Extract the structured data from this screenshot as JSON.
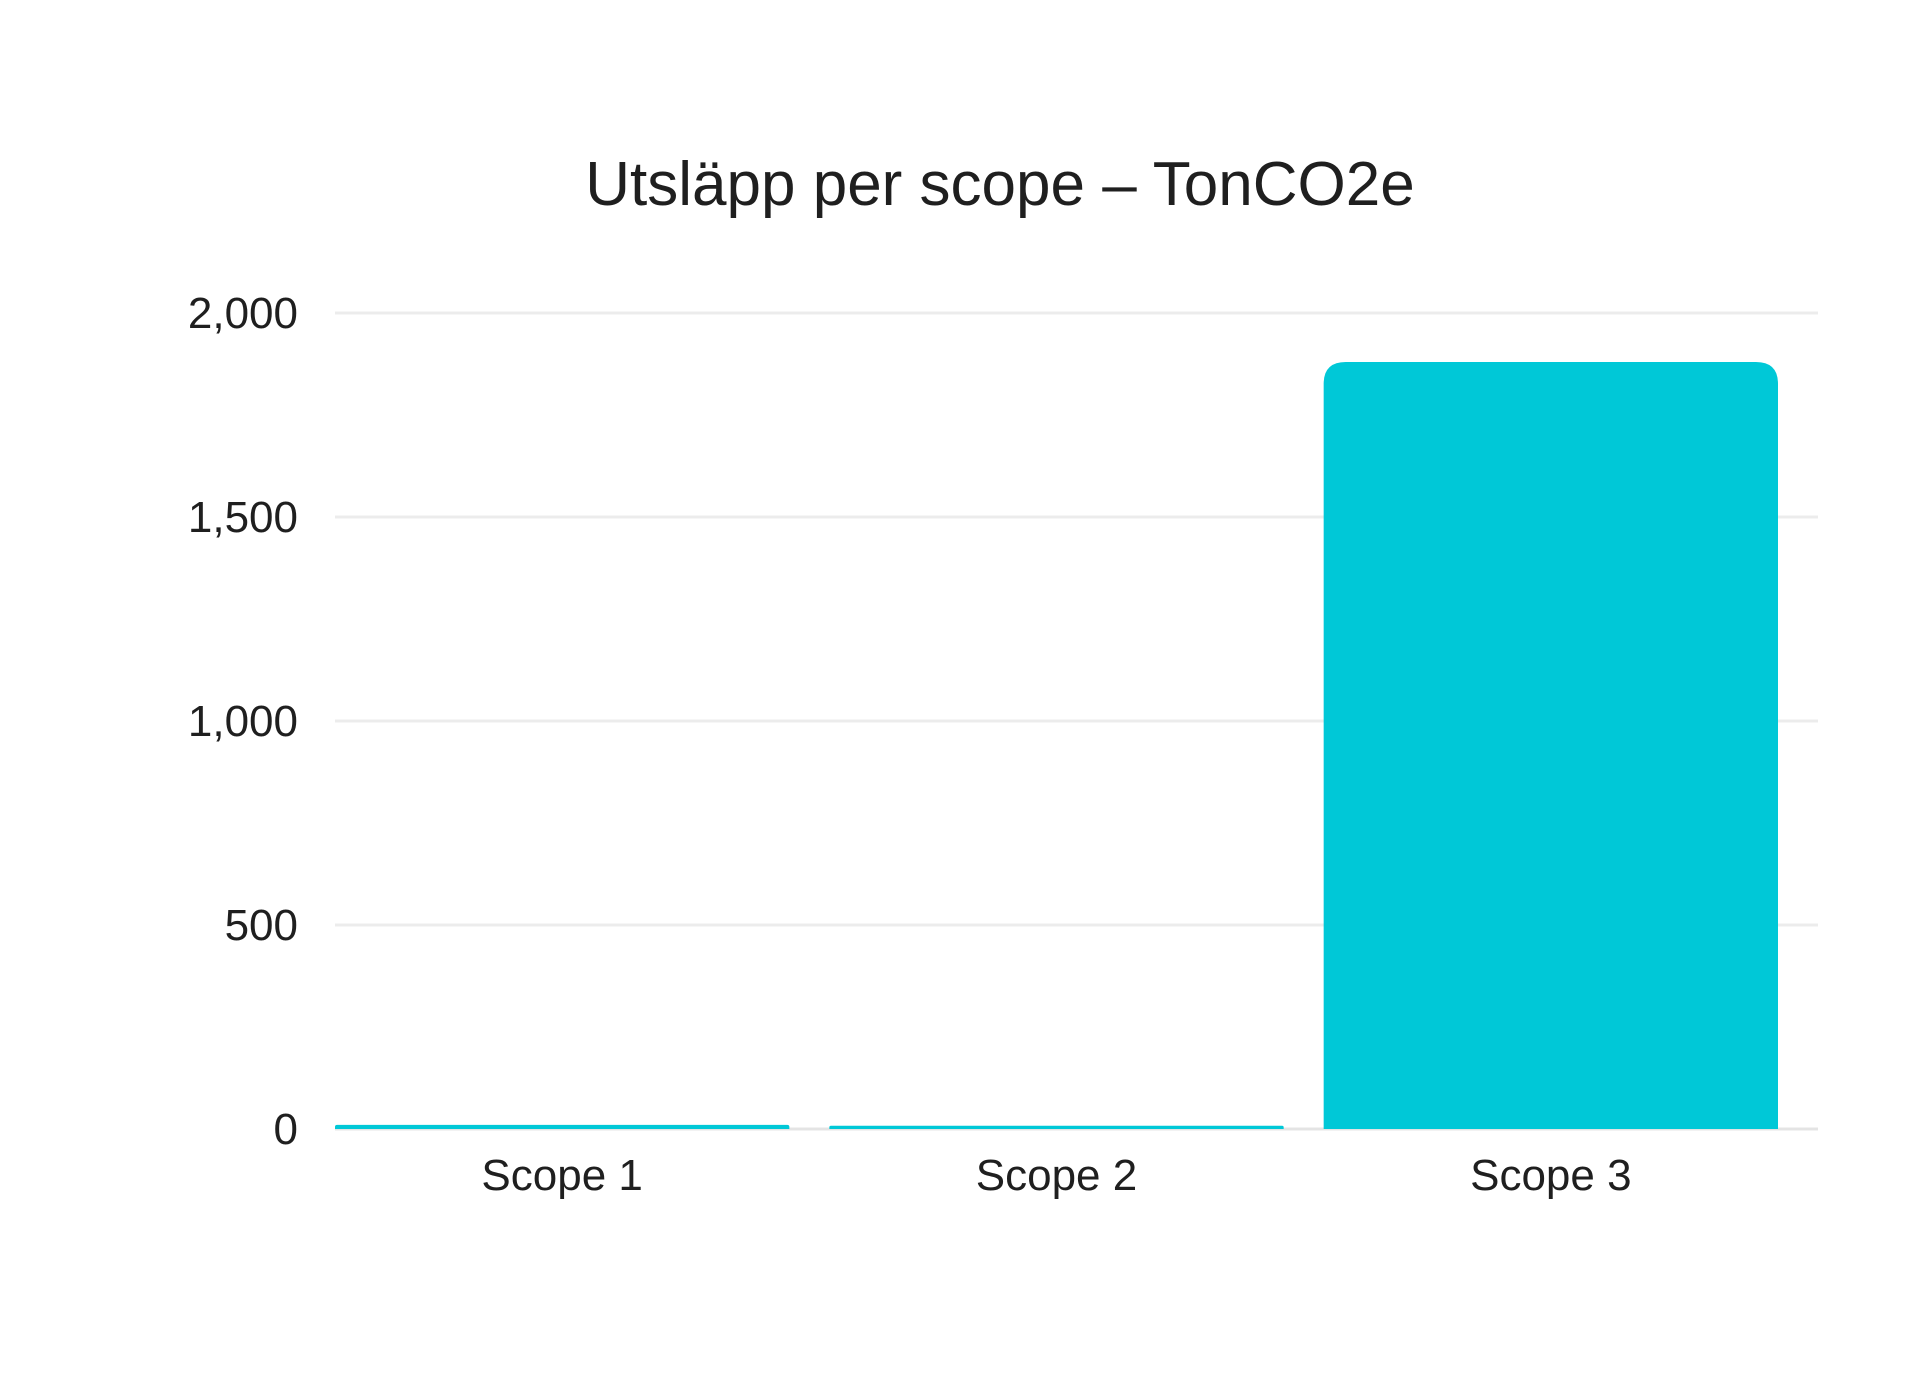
{
  "chart_data": {
    "type": "bar",
    "title": "Utsläpp per scope – TonCO2e",
    "xlabel": "",
    "ylabel": "",
    "categories": [
      "Scope 1",
      "Scope 2",
      "Scope 3"
    ],
    "values": [
      10,
      8,
      1880
    ],
    "ylim": [
      0,
      2000
    ],
    "yticks": [
      "0",
      "500",
      "1,000",
      "1,500",
      "2,000"
    ],
    "ytick_values": [
      0,
      500,
      1000,
      1500,
      2000
    ],
    "grid": true,
    "legend": "none",
    "bar_color": "#00C8D7"
  }
}
